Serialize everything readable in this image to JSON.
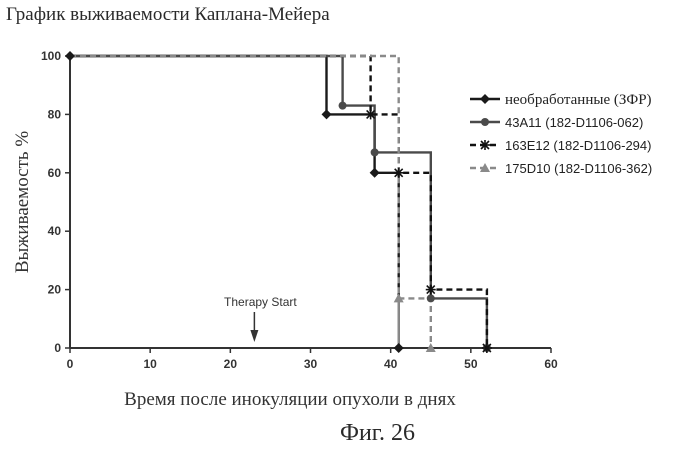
{
  "header": {
    "title": "График выживаемости Каплана-Мейера"
  },
  "figure": {
    "label": "Фиг. 26"
  },
  "chart_data": {
    "type": "line",
    "title": "График выживаемости Каплана-Мейера",
    "xlabel": "Время после инокуляции опухоли в днях",
    "ylabel": "Выживаемость %",
    "xlim": [
      0,
      60
    ],
    "ylim": [
      0,
      100
    ],
    "xticks": [
      0,
      10,
      20,
      30,
      40,
      50,
      60
    ],
    "yticks": [
      0,
      20,
      40,
      60,
      80,
      100
    ],
    "grid": false,
    "legend_position": "right",
    "annotation": {
      "text": "Therapy Start",
      "x": 23
    },
    "series": [
      {
        "name": "необработанные (ЗФР)",
        "color": "#1a1a1a",
        "dash": "solid",
        "marker": "diamond",
        "x": [
          0,
          32,
          32,
          38,
          38,
          41,
          41
        ],
        "y": [
          100,
          100,
          80,
          80,
          60,
          60,
          0
        ],
        "marker_points": [
          [
            0,
            100
          ],
          [
            32,
            80
          ],
          [
            38,
            60
          ],
          [
            41,
            0
          ]
        ]
      },
      {
        "name": "43A11 (182-D1106-062)",
        "color": "#4a4a4a",
        "dash": "solid",
        "marker": "circle",
        "x": [
          0,
          34,
          34,
          38,
          38,
          45,
          45,
          52,
          52
        ],
        "y": [
          100,
          100,
          83,
          83,
          67,
          67,
          17,
          17,
          0
        ],
        "marker_points": [
          [
            34,
            83
          ],
          [
            38,
            67
          ],
          [
            45,
            17
          ],
          [
            52,
            0
          ]
        ]
      },
      {
        "name": "163E12 (182-D1106-294)",
        "color": "#111111",
        "dash": "dashed",
        "marker": "star",
        "x": [
          0,
          37.5,
          37.5,
          41,
          41,
          45,
          45,
          52,
          52
        ],
        "y": [
          100,
          100,
          80,
          80,
          60,
          60,
          20,
          20,
          0
        ],
        "marker_points": [
          [
            37.5,
            80
          ],
          [
            41,
            60
          ],
          [
            45,
            20
          ],
          [
            52,
            0
          ]
        ]
      },
      {
        "name": "175D10 (182-D1106-362)",
        "color": "#8a8a8a",
        "dash": "dashed",
        "marker": "triangle",
        "x": [
          0,
          41,
          41,
          41,
          41,
          45,
          45
        ],
        "y": [
          100,
          100,
          0,
          0,
          17,
          17,
          0
        ],
        "marker_points": [
          [
            41,
            17
          ],
          [
            45,
            0
          ]
        ]
      }
    ]
  }
}
